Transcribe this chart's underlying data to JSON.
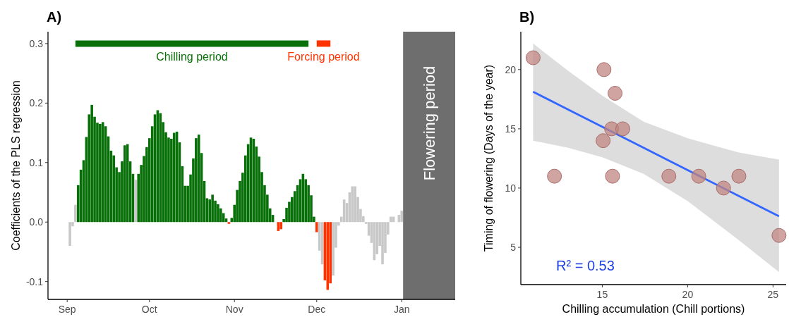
{
  "chart_data": [
    {
      "type": "bar",
      "title": "A)",
      "ylabel": "Coefficients of the PLS regression",
      "categories": [
        "Sep",
        null,
        null,
        null,
        null,
        null,
        null,
        null,
        null,
        null,
        null,
        null,
        null,
        null,
        null,
        null,
        null,
        null,
        null,
        null,
        null,
        null,
        null,
        null,
        null,
        null,
        null,
        null,
        null,
        null,
        "Oct",
        null,
        null,
        null,
        null,
        null,
        null,
        null,
        null,
        null,
        null,
        null,
        null,
        null,
        null,
        null,
        null,
        null,
        null,
        null,
        null,
        null,
        null,
        null,
        null,
        null,
        null,
        null,
        null,
        null,
        null,
        "Nov",
        null,
        null,
        null,
        null,
        null,
        null,
        null,
        null,
        null,
        null,
        null,
        null,
        null,
        null,
        null,
        null,
        null,
        null,
        null,
        null,
        null,
        null,
        null,
        null,
        null,
        null,
        null,
        null,
        null,
        "Dec",
        null,
        null,
        null,
        null,
        null,
        null,
        null,
        null,
        null,
        null,
        null,
        null,
        null,
        null,
        null,
        null,
        null,
        null,
        null,
        null,
        null,
        null,
        null,
        null,
        null,
        null,
        null,
        null,
        null,
        null,
        "Jan"
      ],
      "series": [
        {
          "values": [
            null,
            -0.04,
            -0.007,
            0.029,
            0.062,
            0.088,
            0.104,
            0.143,
            0.181,
            0.197,
            0.177,
            0.167,
            0.165,
            0.168,
            0.161,
            0.144,
            0.12,
            0.112,
            0.092,
            0.084,
            0.102,
            0.129,
            0.131,
            0.102,
            0.081,
            0.071,
            0.081,
            0.096,
            0.111,
            0.126,
            0.141,
            0.161,
            0.181,
            0.188,
            0.183,
            0.168,
            0.151,
            0.142,
            0.14,
            0.15,
            0.152,
            0.134,
            0.094,
            0.061,
            0.061,
            0.08,
            0.107,
            0.141,
            0.147,
            0.116,
            0.069,
            0.04,
            0.038,
            0.046,
            0.036,
            0.03,
            0.023,
            0.015,
            0.006,
            -0.003,
            0.007,
            0.029,
            0.054,
            0.069,
            0.083,
            0.112,
            0.131,
            0.142,
            0.14,
            0.127,
            0.11,
            0.084,
            0.062,
            0.046,
            0.023,
            0.012,
            null,
            -0.015,
            -0.012,
            0.005,
            0.024,
            0.034,
            0.042,
            0.052,
            0.062,
            0.072,
            0.081,
            0.072,
            0.062,
            0.045,
            0.009,
            -0.017,
            -0.048,
            -0.071,
            -0.098,
            -0.114,
            -0.103,
            -0.09,
            -0.043,
            -0.006,
            0.009,
            0.038,
            0.032,
            0.05,
            0.06,
            0.06,
            0.042,
            0.022,
            0.01,
            -0.003,
            -0.023,
            -0.035,
            -0.064,
            -0.054,
            -0.04,
            -0.071,
            -0.052,
            -0.021,
            0.009,
            0.009,
            null,
            0.012,
            0.019
          ],
          "colors": [
            null,
            "#c8c8c8",
            "#c8c8c8",
            "#c8c8c8",
            "#087008",
            "#087008",
            "#087008",
            "#087008",
            "#087008",
            "#087008",
            "#087008",
            "#087008",
            "#087008",
            "#087008",
            "#087008",
            "#087008",
            "#087008",
            "#087008",
            "#087008",
            "#087008",
            "#087008",
            "#087008",
            "#087008",
            "#087008",
            "#087008",
            "#c8c8c8",
            "#087008",
            "#087008",
            "#087008",
            "#087008",
            "#087008",
            "#087008",
            "#087008",
            "#087008",
            "#087008",
            "#087008",
            "#087008",
            "#087008",
            "#087008",
            "#087008",
            "#087008",
            "#087008",
            "#087008",
            "#087008",
            "#087008",
            "#087008",
            "#087008",
            "#087008",
            "#087008",
            "#087008",
            "#087008",
            "#087008",
            "#087008",
            "#087008",
            "#087008",
            "#087008",
            "#087008",
            "#087008",
            "#087008",
            "#ff3300",
            "#087008",
            "#087008",
            "#087008",
            "#087008",
            "#087008",
            "#087008",
            "#087008",
            "#087008",
            "#087008",
            "#087008",
            "#087008",
            "#087008",
            "#087008",
            "#087008",
            "#087008",
            "#087008",
            null,
            "#ff3300",
            "#ff3300",
            "#087008",
            "#087008",
            "#087008",
            "#087008",
            "#087008",
            "#087008",
            "#087008",
            "#087008",
            "#087008",
            "#087008",
            "#087008",
            "#087008",
            "#ff3300",
            "#c8c8c8",
            "#c8c8c8",
            "#ff3300",
            "#ff3300",
            "#ff3300",
            "#c8c8c8",
            "#c8c8c8",
            "#c8c8c8",
            "#c8c8c8",
            "#c8c8c8",
            "#c8c8c8",
            "#c8c8c8",
            "#c8c8c8",
            "#c8c8c8",
            "#c8c8c8",
            "#c8c8c8",
            "#c8c8c8",
            "#c8c8c8",
            "#c8c8c8",
            "#c8c8c8",
            "#c8c8c8",
            "#c8c8c8",
            "#c8c8c8",
            "#c8c8c8",
            "#c8c8c8",
            "#c8c8c8",
            "#c8c8c8",
            "#c8c8c8",
            null,
            "#c8c8c8",
            "#c8c8c8"
          ]
        },
        {
          "type": "line",
          "name": "Chilling period",
          "color": "#087008",
          "values": [
            null,
            null,
            null,
            0.3,
            0.3,
            0.3,
            0.3,
            0.3,
            0.3,
            0.3,
            0.3,
            0.3,
            0.3,
            0.3,
            0.3,
            0.3,
            0.3,
            0.3,
            0.3,
            0.3,
            0.3,
            0.3,
            0.3,
            0.3,
            0.3,
            0.3,
            0.3,
            0.3,
            0.3,
            0.3,
            0.3,
            0.3,
            0.3,
            0.3,
            0.3,
            0.3,
            0.3,
            0.3,
            0.3,
            0.3,
            0.3,
            0.3,
            0.3,
            0.3,
            0.3,
            0.3,
            0.3,
            0.3,
            0.3,
            0.3,
            0.3,
            0.3,
            0.3,
            0.3,
            0.3,
            0.3,
            0.3,
            0.3,
            0.3,
            0.3,
            0.3,
            0.3,
            0.3,
            0.3,
            0.3,
            0.3,
            0.3,
            0.3,
            0.3,
            0.3,
            0.3,
            0.3,
            0.3,
            0.3,
            0.3,
            0.3,
            0.3,
            0.3,
            0.3,
            0.3,
            0.3,
            0.3,
            0.3,
            0.3,
            0.3,
            0.3,
            0.3,
            0.3,
            0.3,
            null,
            null,
            null,
            null,
            null,
            null,
            null,
            null,
            null,
            null,
            null,
            null,
            null,
            null,
            null,
            null,
            null,
            null,
            null,
            null,
            null,
            null,
            null,
            null,
            null,
            null,
            null,
            null,
            null,
            null,
            null,
            null,
            null,
            null
          ]
        },
        {
          "type": "line",
          "name": "Forcing period",
          "color": "#ff3300",
          "values": [
            null,
            null,
            null,
            null,
            null,
            null,
            null,
            null,
            null,
            null,
            null,
            null,
            null,
            null,
            null,
            null,
            null,
            null,
            null,
            null,
            null,
            null,
            null,
            null,
            null,
            null,
            null,
            null,
            null,
            null,
            null,
            null,
            null,
            null,
            null,
            null,
            null,
            null,
            null,
            null,
            null,
            null,
            null,
            null,
            null,
            null,
            null,
            null,
            null,
            null,
            null,
            null,
            null,
            null,
            null,
            null,
            null,
            null,
            null,
            null,
            null,
            null,
            null,
            null,
            null,
            null,
            null,
            null,
            null,
            null,
            null,
            null,
            null,
            null,
            null,
            null,
            null,
            null,
            null,
            null,
            null,
            null,
            null,
            null,
            null,
            null,
            null,
            null,
            null,
            null,
            null,
            0.3,
            0.3,
            0.3,
            0.3,
            0.3,
            0.3,
            null,
            null,
            null,
            null,
            null,
            null,
            null,
            null,
            null,
            null,
            null,
            null,
            null,
            null,
            null,
            null,
            null,
            null,
            null,
            null,
            null,
            null,
            null,
            null,
            null,
            null
          ]
        }
      ],
      "annotations": [
        "Flowering period"
      ],
      "ylim": [
        -0.13,
        0.32
      ],
      "yticks": [
        {
          "value": -0.1,
          "label": "-0.1"
        },
        {
          "value": 0,
          "label": "0.0"
        },
        {
          "value": 0.1,
          "label": "0.1"
        },
        {
          "value": 0.2,
          "label": "0.2"
        },
        {
          "value": 0.3,
          "label": "0.3"
        }
      ]
    },
    {
      "type": "scatter",
      "title": "B)",
      "xlabel": "Chilling accumulation (Chill portions)",
      "ylabel": "Timing of flowering (Days of the year)",
      "series": [
        {
          "color": "#c08582",
          "marker": "circle",
          "x": [
            10.95,
            15.1,
            15.75,
            15.55,
            16.2,
            15.05,
            12.2,
            15.6,
            18.9,
            20.65,
            23.0,
            22.1,
            25.35
          ],
          "values": [
            21,
            20,
            18,
            15,
            15,
            14,
            11,
            11,
            11,
            11,
            11,
            10,
            6
          ]
        },
        {
          "type": "line",
          "color": "#3366ff",
          "x": [
            10.95,
            13,
            15,
            17.42,
            20,
            23,
            25.35
          ],
          "values": [
            18.13,
            16.63,
            15.17,
            13.4,
            11.52,
            9.33,
            7.62
          ],
          "lower": [
            14.0,
            13.4,
            12.6,
            11.2,
            8.9,
            5.6,
            2.9
          ],
          "upper": [
            22.2,
            19.9,
            17.8,
            15.6,
            14.2,
            13.0,
            12.4
          ]
        }
      ],
      "annotations": [
        "R² =  0.53"
      ],
      "xlim": [
        10.23,
        25.77
      ],
      "xticks": [
        15,
        20,
        25
      ],
      "ylim": [
        1.85,
        23.2
      ],
      "yticks": [
        5,
        10,
        15,
        20
      ]
    }
  ]
}
